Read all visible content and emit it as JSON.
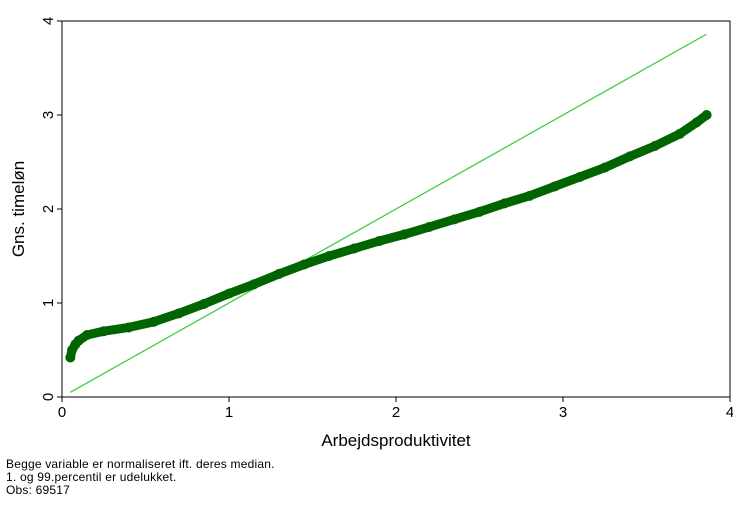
{
  "chart_data": {
    "type": "scatter",
    "title": "",
    "xlabel": "Arbejdsproduktivitet",
    "ylabel": "Gns. timeløn",
    "xlim": [
      0,
      4
    ],
    "ylim": [
      0,
      4
    ],
    "xticks": [
      "0",
      "1",
      "2",
      "3",
      "4"
    ],
    "yticks": [
      "0",
      "1",
      "2",
      "3",
      "4"
    ],
    "grid": false,
    "series": [
      {
        "type": "scatter",
        "color": "#006400",
        "x": [
          0.05,
          0.06,
          0.08,
          0.1,
          0.15,
          0.25,
          0.4,
          0.55,
          0.7,
          0.85,
          1.0,
          1.15,
          1.3,
          1.45,
          1.6,
          1.75,
          1.9,
          2.05,
          2.2,
          2.35,
          2.5,
          2.65,
          2.8,
          2.95,
          3.1,
          3.25,
          3.4,
          3.55,
          3.7,
          3.8,
          3.86
        ],
        "y": [
          0.42,
          0.5,
          0.56,
          0.6,
          0.66,
          0.7,
          0.74,
          0.8,
          0.89,
          0.99,
          1.1,
          1.2,
          1.31,
          1.41,
          1.5,
          1.58,
          1.66,
          1.73,
          1.81,
          1.89,
          1.97,
          2.06,
          2.14,
          2.24,
          2.34,
          2.44,
          2.56,
          2.67,
          2.8,
          2.92,
          3.0
        ]
      },
      {
        "type": "line",
        "color": "#33cc33",
        "x": [
          0.05,
          3.86
        ],
        "y": [
          0.05,
          3.86
        ]
      }
    ]
  },
  "notes": {
    "line1": "Begge variable er normaliseret ift. deres median.",
    "line2": "1. og 99.percentil er udelukket.",
    "line3": "Obs: 69517"
  }
}
